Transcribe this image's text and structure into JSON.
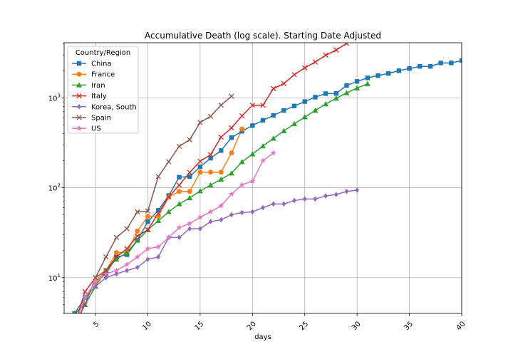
{
  "chart_data": {
    "type": "line",
    "title": "Accumulative Death (log scale). Starting Date Adjusted",
    "xlabel": "days",
    "ylabel": "",
    "x_scale": "linear",
    "y_scale": "log",
    "xlim": [
      2,
      40
    ],
    "ylim": [
      4,
      4100
    ],
    "grid": true,
    "legend_title": "Country/Region",
    "legend_position": "top-left",
    "x_ticks": [
      {
        "value": 5,
        "label": "5"
      },
      {
        "value": 10,
        "label": "10"
      },
      {
        "value": 15,
        "label": "15"
      },
      {
        "value": 20,
        "label": "20"
      },
      {
        "value": 25,
        "label": "25"
      },
      {
        "value": 30,
        "label": "30"
      },
      {
        "value": 35,
        "label": "35"
      },
      {
        "value": 40,
        "label": "40"
      }
    ],
    "y_ticks": [
      {
        "value": 10,
        "base": "10",
        "exp": "1"
      },
      {
        "value": 100,
        "base": "10",
        "exp": "2"
      },
      {
        "value": 1000,
        "base": "10",
        "exp": "3"
      }
    ],
    "series": [
      {
        "name": "China",
        "color": "#1f77b4",
        "marker": "square",
        "points": [
          [
            3,
            4
          ],
          [
            4,
            6
          ],
          [
            5,
            9
          ],
          [
            6,
            11
          ],
          [
            7,
            17
          ],
          [
            8,
            18
          ],
          [
            9,
            26
          ],
          [
            10,
            42
          ],
          [
            11,
            56
          ],
          [
            12,
            82
          ],
          [
            13,
            131
          ],
          [
            14,
            133
          ],
          [
            15,
            171
          ],
          [
            16,
            213
          ],
          [
            17,
            259
          ],
          [
            18,
            361
          ],
          [
            19,
            425
          ],
          [
            20,
            491
          ],
          [
            21,
            563
          ],
          [
            22,
            637
          ],
          [
            23,
            723
          ],
          [
            24,
            812
          ],
          [
            25,
            909
          ],
          [
            26,
            1017
          ],
          [
            27,
            1114
          ],
          [
            28,
            1118
          ],
          [
            29,
            1371
          ],
          [
            30,
            1523
          ],
          [
            31,
            1666
          ],
          [
            32,
            1770
          ],
          [
            33,
            1868
          ],
          [
            34,
            2004
          ],
          [
            35,
            2118
          ],
          [
            36,
            2236
          ],
          [
            37,
            2238
          ],
          [
            38,
            2443
          ],
          [
            39,
            2445
          ],
          [
            40,
            2595
          ]
        ]
      },
      {
        "name": "France",
        "color": "#ff7f0e",
        "marker": "circle",
        "points": [
          [
            5,
            9
          ],
          [
            6,
            12
          ],
          [
            7,
            19
          ],
          [
            8,
            19
          ],
          [
            9,
            33
          ],
          [
            10,
            48
          ],
          [
            11,
            48
          ],
          [
            12,
            79
          ],
          [
            13,
            91
          ],
          [
            14,
            91
          ],
          [
            15,
            149
          ],
          [
            16,
            149
          ],
          [
            17,
            149
          ],
          [
            18,
            244
          ],
          [
            19,
            450
          ]
        ]
      },
      {
        "name": "Iran",
        "color": "#2ca02c",
        "marker": "triangle",
        "points": [
          [
            3,
            4
          ],
          [
            4,
            5
          ],
          [
            5,
            8
          ],
          [
            6,
            12
          ],
          [
            7,
            16
          ],
          [
            8,
            19
          ],
          [
            9,
            26
          ],
          [
            10,
            34
          ],
          [
            11,
            43
          ],
          [
            12,
            54
          ],
          [
            13,
            66
          ],
          [
            14,
            77
          ],
          [
            15,
            92
          ],
          [
            16,
            107
          ],
          [
            17,
            124
          ],
          [
            18,
            145
          ],
          [
            19,
            194
          ],
          [
            20,
            237
          ],
          [
            21,
            291
          ],
          [
            22,
            354
          ],
          [
            23,
            429
          ],
          [
            24,
            514
          ],
          [
            25,
            611
          ],
          [
            26,
            724
          ],
          [
            27,
            853
          ],
          [
            28,
            988
          ],
          [
            29,
            1135
          ],
          [
            30,
            1284
          ],
          [
            31,
            1433
          ]
        ]
      },
      {
        "name": "Italy",
        "color": "#d62728",
        "marker": "x",
        "points": [
          [
            3,
            3
          ],
          [
            4,
            7
          ],
          [
            5,
            10
          ],
          [
            6,
            12
          ],
          [
            7,
            17
          ],
          [
            8,
            21
          ],
          [
            9,
            29
          ],
          [
            10,
            34
          ],
          [
            11,
            52
          ],
          [
            12,
            79
          ],
          [
            13,
            107
          ],
          [
            14,
            148
          ],
          [
            15,
            197
          ],
          [
            16,
            233
          ],
          [
            17,
            366
          ],
          [
            18,
            463
          ],
          [
            19,
            631
          ],
          [
            20,
            827
          ],
          [
            21,
            827
          ],
          [
            22,
            1266
          ],
          [
            23,
            1441
          ],
          [
            24,
            1809
          ],
          [
            25,
            2158
          ],
          [
            26,
            2503
          ],
          [
            27,
            2978
          ],
          [
            28,
            3405
          ],
          [
            29,
            4032
          ]
        ]
      },
      {
        "name": "Korea, South",
        "color": "#9467bd",
        "marker": "diamond",
        "points": [
          [
            3,
            2
          ],
          [
            4,
            6
          ],
          [
            5,
            8
          ],
          [
            6,
            10
          ],
          [
            7,
            11
          ],
          [
            8,
            12
          ],
          [
            9,
            13
          ],
          [
            10,
            16
          ],
          [
            11,
            17
          ],
          [
            12,
            28
          ],
          [
            13,
            28
          ],
          [
            14,
            35
          ],
          [
            15,
            35
          ],
          [
            16,
            42
          ],
          [
            17,
            44
          ],
          [
            18,
            50
          ],
          [
            19,
            53
          ],
          [
            20,
            54
          ],
          [
            21,
            60
          ],
          [
            22,
            66
          ],
          [
            23,
            66
          ],
          [
            24,
            72
          ],
          [
            25,
            75
          ],
          [
            26,
            75
          ],
          [
            27,
            81
          ],
          [
            28,
            84
          ],
          [
            29,
            91
          ],
          [
            30,
            94
          ]
        ]
      },
      {
        "name": "Spain",
        "color": "#8c564b",
        "marker": "x",
        "points": [
          [
            3,
            3
          ],
          [
            4,
            5
          ],
          [
            5,
            10
          ],
          [
            6,
            17
          ],
          [
            7,
            28
          ],
          [
            8,
            35
          ],
          [
            9,
            54
          ],
          [
            10,
            55
          ],
          [
            11,
            133
          ],
          [
            12,
            195
          ],
          [
            13,
            289
          ],
          [
            14,
            342
          ],
          [
            15,
            533
          ],
          [
            16,
            623
          ],
          [
            17,
            830
          ],
          [
            18,
            1043
          ]
        ]
      },
      {
        "name": "US",
        "color": "#e377c2",
        "marker": "star",
        "points": [
          [
            3,
            3
          ],
          [
            4,
            6
          ],
          [
            5,
            9
          ],
          [
            6,
            11
          ],
          [
            7,
            12
          ],
          [
            8,
            14
          ],
          [
            9,
            17
          ],
          [
            10,
            21
          ],
          [
            11,
            22
          ],
          [
            12,
            28
          ],
          [
            13,
            36
          ],
          [
            14,
            40
          ],
          [
            15,
            47
          ],
          [
            16,
            54
          ],
          [
            17,
            63
          ],
          [
            18,
            85
          ],
          [
            19,
            108
          ],
          [
            20,
            118
          ],
          [
            21,
            200
          ],
          [
            22,
            244
          ]
        ]
      }
    ]
  }
}
